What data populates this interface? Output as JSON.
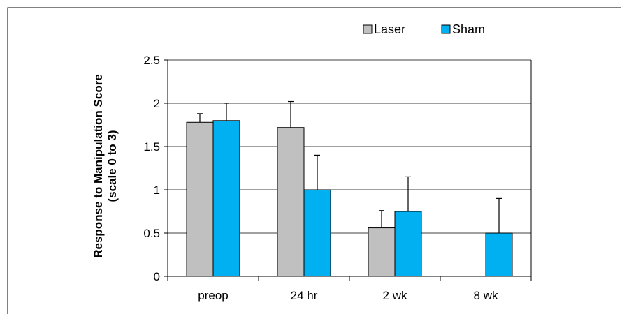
{
  "chart_data": {
    "type": "bar",
    "categories": [
      "preop",
      "24 hr",
      "2 wk",
      "8 wk"
    ],
    "series": [
      {
        "name": "Laser",
        "values": [
          1.78,
          1.72,
          0.56,
          0
        ],
        "error_upper": [
          1.88,
          2.02,
          0.76,
          null
        ],
        "color": "#c0c0c0"
      },
      {
        "name": "Sham",
        "values": [
          1.8,
          1.0,
          0.75,
          0.5
        ],
        "error_upper": [
          2.0,
          1.4,
          1.15,
          0.9
        ],
        "color": "#00b0f0"
      }
    ],
    "title": "",
    "xlabel": "",
    "ylabel": "Response to Manipulation Score (scale 0 to 3)",
    "ylabel_lines": [
      "Response to Manipulation Score",
      "(scale 0 to 3)"
    ],
    "ylim": [
      0,
      2.5
    ],
    "yticks": [
      "0",
      "0.5",
      "1",
      "1.5",
      "2",
      "2.5"
    ],
    "ytick_values": [
      0,
      0.5,
      1,
      1.5,
      2,
      2.5
    ],
    "grid": true,
    "legend_position": "top-right"
  }
}
